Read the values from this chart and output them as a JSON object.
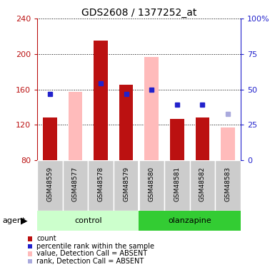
{
  "title": "GDS2608 / 1377252_at",
  "samples": [
    "GSM48559",
    "GSM48577",
    "GSM48578",
    "GSM48579",
    "GSM48580",
    "GSM48581",
    "GSM48582",
    "GSM48583"
  ],
  "red_bar_values": [
    128,
    null,
    215,
    165,
    null,
    127,
    128,
    null
  ],
  "pink_bar_values": [
    null,
    157,
    null,
    null,
    197,
    null,
    null,
    117
  ],
  "blue_square_values": [
    155,
    null,
    167,
    155,
    160,
    143,
    143,
    null
  ],
  "light_blue_square_values": [
    null,
    null,
    null,
    null,
    null,
    null,
    null,
    132
  ],
  "ymin": 80,
  "ymax": 240,
  "yticks": [
    80,
    120,
    160,
    200,
    240
  ],
  "y2ticks": [
    0,
    25,
    50,
    75,
    100
  ],
  "y2ticklabels": [
    "0",
    "25",
    "50",
    "75",
    "100%"
  ],
  "red_color": "#bb1111",
  "pink_color": "#ffbbbb",
  "blue_color": "#2222cc",
  "light_blue_color": "#aaaadd",
  "control_light": "#ccffcc",
  "olanzapine_green": "#33cc33",
  "label_bg_color": "#cccccc",
  "bar_width": 0.55,
  "legend_items": [
    {
      "label": "count",
      "color": "#bb1111"
    },
    {
      "label": "percentile rank within the sample",
      "color": "#2222cc"
    },
    {
      "label": "value, Detection Call = ABSENT",
      "color": "#ffbbbb"
    },
    {
      "label": "rank, Detection Call = ABSENT",
      "color": "#aaaadd"
    }
  ]
}
